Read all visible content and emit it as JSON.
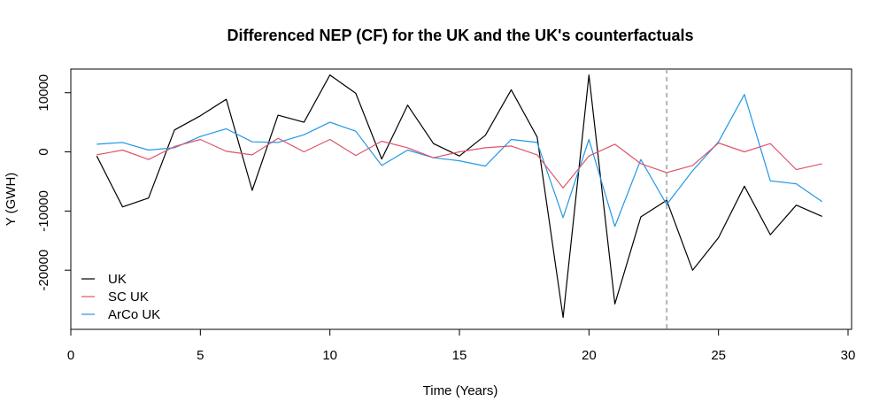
{
  "chart_data": {
    "type": "line",
    "title": "Differenced NEP (CF) for the UK and the UK's counterfactuals",
    "xlabel": "Time (Years)",
    "ylabel": "Y (GWH)",
    "xlim": [
      0,
      30
    ],
    "ylim": [
      -30000,
      14000
    ],
    "x_ticks": [
      0,
      5,
      10,
      15,
      20,
      25,
      30
    ],
    "x_tick_labels": [
      "0",
      "5",
      "10",
      "15",
      "20",
      "25",
      "30"
    ],
    "y_ticks": [
      10000,
      0,
      -10000,
      -20000
    ],
    "y_tick_labels": [
      "10000",
      "0",
      "-10000",
      "-20000"
    ],
    "vline": {
      "x": 23,
      "style": "dashed",
      "color": "#9e9e9e"
    },
    "legend_position": "bottom-left",
    "x": [
      1,
      2,
      3,
      4,
      5,
      6,
      7,
      8,
      9,
      10,
      11,
      12,
      13,
      14,
      15,
      16,
      17,
      18,
      19,
      20,
      21,
      22,
      23,
      24,
      25,
      26,
      27,
      28,
      29
    ],
    "series": [
      {
        "name": "UK",
        "color": "#000000",
        "values": [
          -700,
          -9300,
          -7800,
          3700,
          6100,
          8900,
          -6500,
          6200,
          5000,
          13000,
          9900,
          -1200,
          7900,
          1400,
          -700,
          2800,
          10500,
          2500,
          -28000,
          13000,
          -25700,
          -11000,
          -8200,
          -20000,
          -14500,
          -5800,
          -14000,
          -9000,
          -10900
        ]
      },
      {
        "name": "SC UK",
        "color": "#df536b",
        "values": [
          -500,
          300,
          -1300,
          900,
          2100,
          100,
          -500,
          2300,
          0,
          2100,
          -600,
          1800,
          700,
          -1000,
          0,
          700,
          1000,
          -500,
          -6100,
          -700,
          1300,
          -2000,
          -3500,
          -2300,
          1500,
          0,
          1400,
          -3000,
          -2000
        ]
      },
      {
        "name": "ArCo UK",
        "color": "#2297e6",
        "values": [
          1300,
          1600,
          300,
          700,
          2600,
          3900,
          1700,
          1600,
          2900,
          5000,
          3500,
          -2300,
          300,
          -1000,
          -1500,
          -2400,
          2100,
          1600,
          -11100,
          2100,
          -12600,
          -1300,
          -8900,
          -3200,
          1700,
          9700,
          -4900,
          -5400,
          -8400
        ]
      }
    ]
  }
}
